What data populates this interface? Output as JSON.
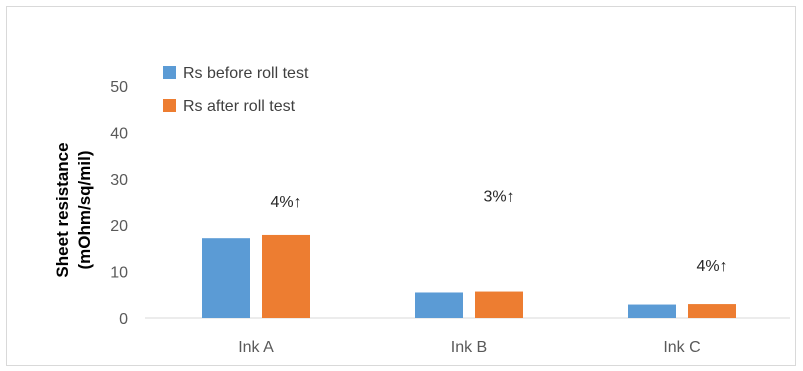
{
  "chart_data": {
    "type": "bar",
    "categories": [
      "Ink A",
      "Ink B",
      "Ink C"
    ],
    "series": [
      {
        "name": "Rs before roll test",
        "values": [
          17.2,
          5.5,
          2.9
        ],
        "color": "#5b9bd5"
      },
      {
        "name": "Rs after roll test",
        "values": [
          17.9,
          5.7,
          3.0
        ],
        "color": "#ed7d31"
      }
    ],
    "annotations": [
      "4%↑",
      "3%↑",
      "4%↑"
    ],
    "ylabel_line1": "Sheet resistance",
    "ylabel_line2": "(mOhm/sq/mil)",
    "ylim": [
      0,
      50
    ],
    "yticks": [
      "0",
      "10",
      "20",
      "30",
      "40",
      "50"
    ],
    "grid": false,
    "legend": "top-left"
  }
}
